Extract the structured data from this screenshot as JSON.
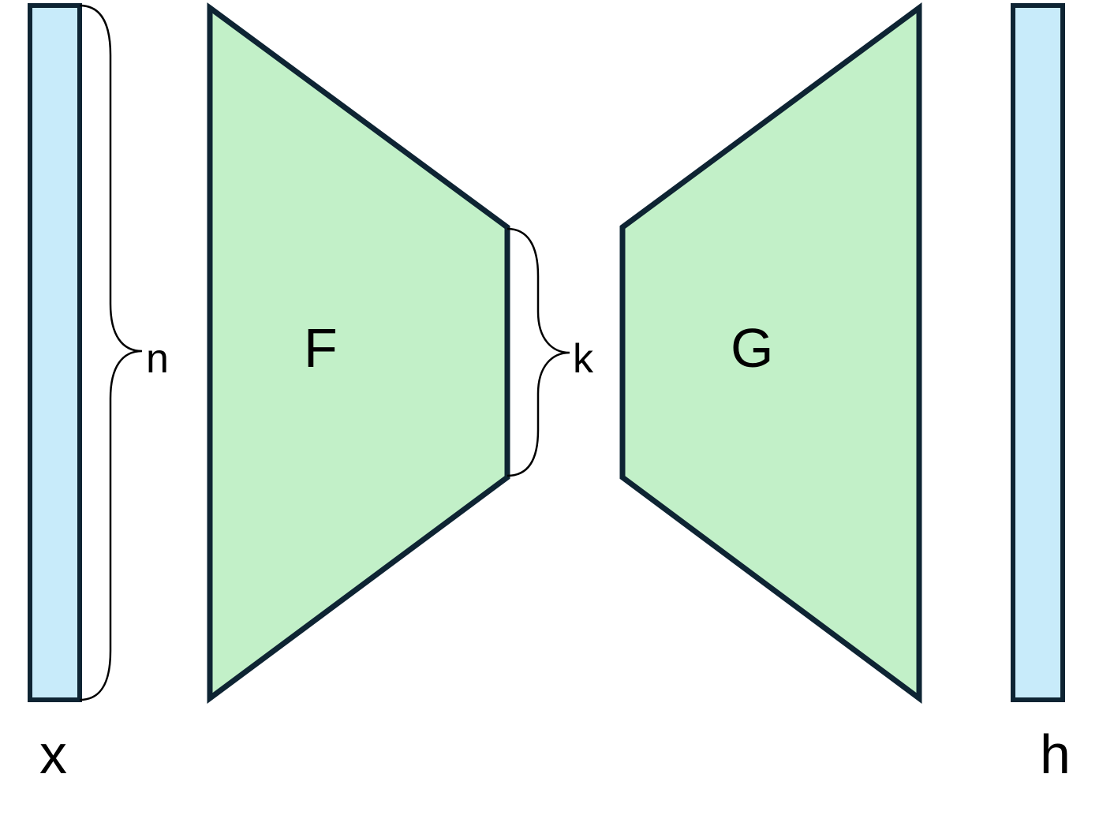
{
  "labels": {
    "input_vector": "x",
    "output_vector": "h",
    "encoder": "F",
    "decoder": "G",
    "input_dim": "n",
    "latent_dim": "k"
  },
  "colors": {
    "vector_fill": "#c8ebfa",
    "block_fill": "#c2f0c8",
    "stroke": "#0e2433",
    "brace": "#000000"
  }
}
